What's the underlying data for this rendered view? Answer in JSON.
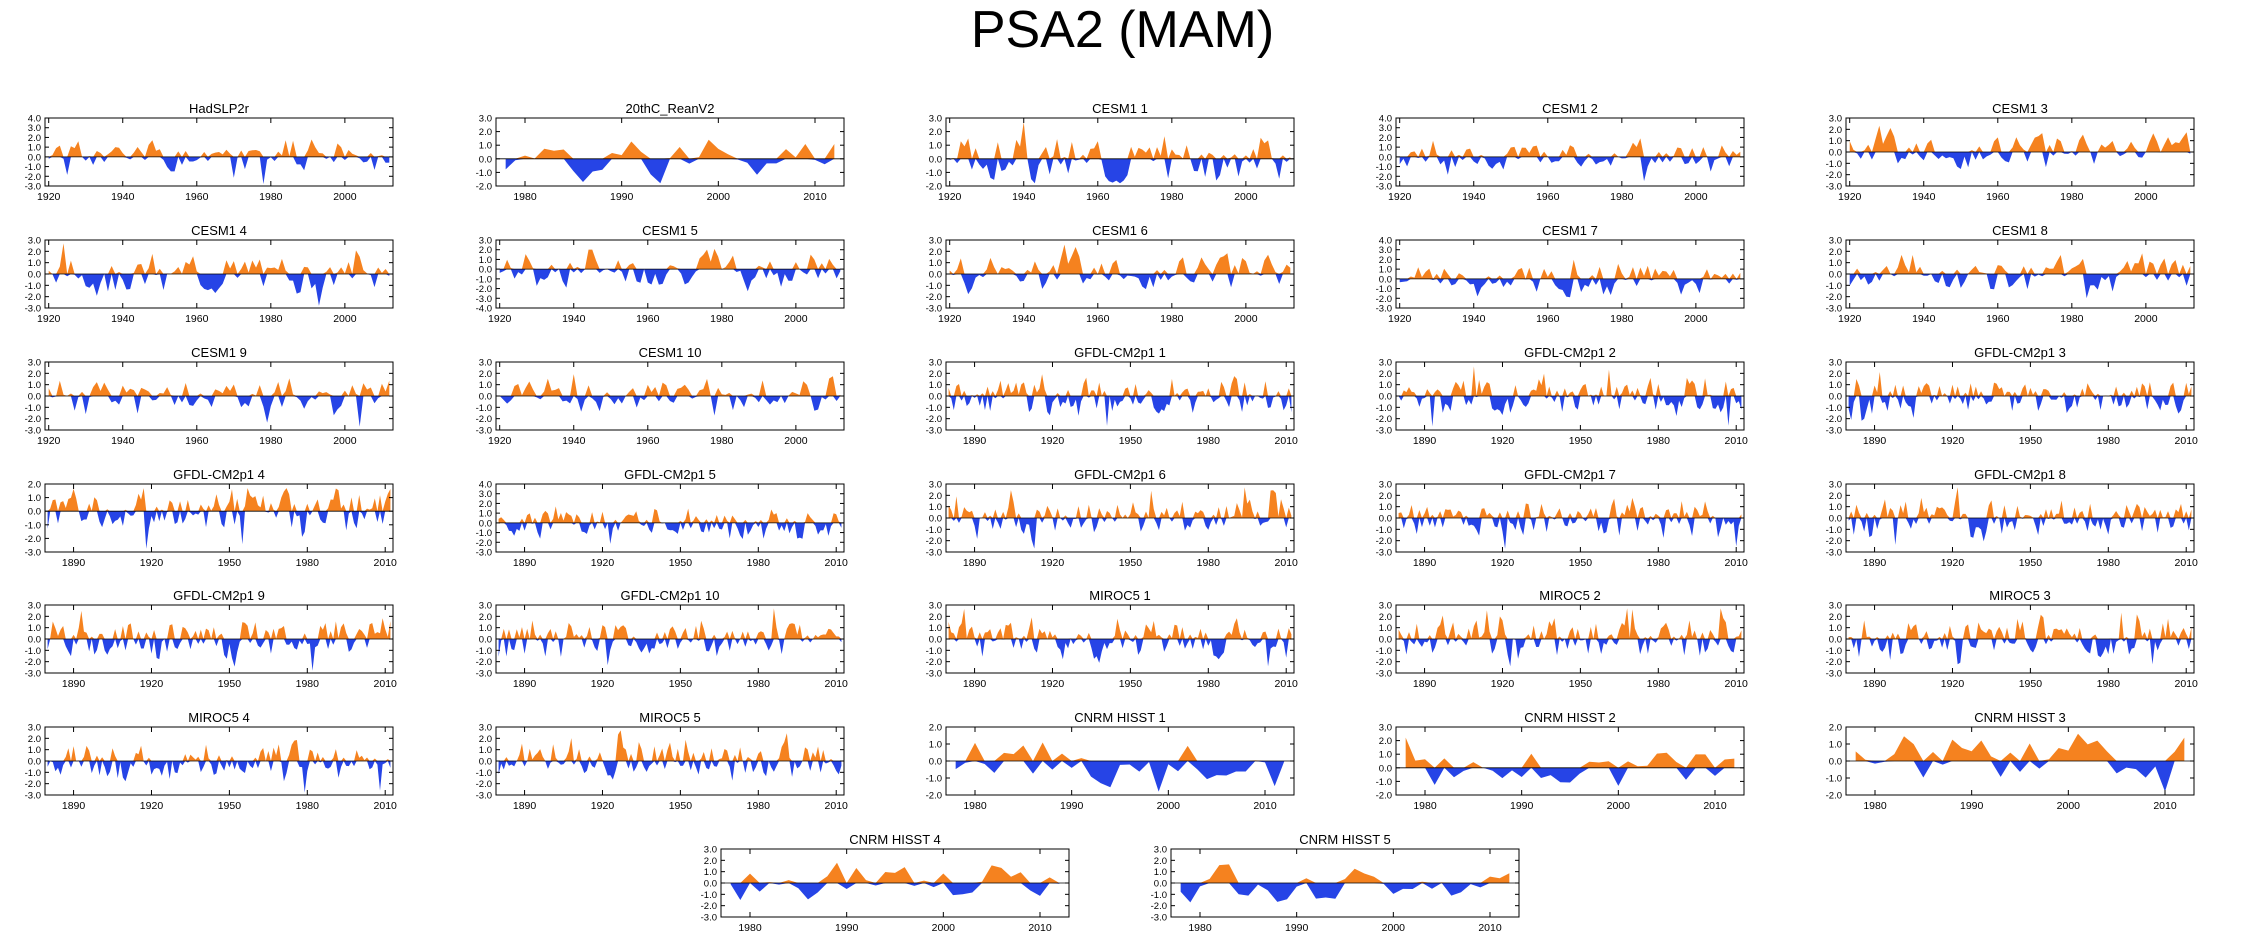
{
  "title": "PSA2 (MAM)",
  "colors": {
    "positive": "#f5821f",
    "negative": "#2644e6",
    "axis": "#000000",
    "background": "#ffffff"
  },
  "chart_data": [
    {
      "type": "area",
      "title": "HadSLP2r",
      "x_start": 1920,
      "x_end": 2012,
      "xticks": [
        1920,
        1940,
        1960,
        1980,
        2000
      ],
      "yticks": [
        "4.0",
        "3.0",
        "2.0",
        "1.0",
        "0.0",
        "-1.0",
        "-2.0",
        "-3.0"
      ],
      "ylim": [
        -3,
        4
      ],
      "seed": 1,
      "smooth": 0.9
    },
    {
      "type": "area",
      "title": "20thC_ReanV2",
      "x_start": 1978,
      "x_end": 2012,
      "xticks": [
        1980,
        1990,
        2000,
        2010
      ],
      "yticks": [
        "3.0",
        "2.0",
        "1.0",
        "0.0",
        "-1.0",
        "-2.0"
      ],
      "ylim": [
        -2,
        3
      ],
      "seed": 2,
      "smooth": 0.8
    },
    {
      "type": "area",
      "title": "CESM1 1",
      "x_start": 1920,
      "x_end": 2012,
      "xticks": [
        1920,
        1940,
        1960,
        1980,
        2000
      ],
      "yticks": [
        "3.0",
        "2.0",
        "1.0",
        "0.0",
        "-1.0",
        "-2.0"
      ],
      "ylim": [
        -2,
        3
      ],
      "seed": 3,
      "smooth": 0.9
    },
    {
      "type": "area",
      "title": "CESM1 2",
      "x_start": 1920,
      "x_end": 2012,
      "xticks": [
        1920,
        1940,
        1960,
        1980,
        2000
      ],
      "yticks": [
        "4.0",
        "3.0",
        "2.0",
        "1.0",
        "0.0",
        "-1.0",
        "-2.0",
        "-3.0"
      ],
      "ylim": [
        -3,
        4
      ],
      "seed": 4,
      "smooth": 0.9
    },
    {
      "type": "area",
      "title": "CESM1 3",
      "x_start": 1920,
      "x_end": 2012,
      "xticks": [
        1920,
        1940,
        1960,
        1980,
        2000
      ],
      "yticks": [
        "3.0",
        "2.0",
        "1.0",
        "0.0",
        "-1.0",
        "-2.0",
        "-3.0"
      ],
      "ylim": [
        -3,
        3
      ],
      "seed": 5,
      "smooth": 0.9
    },
    {
      "type": "area",
      "title": "CESM1 4",
      "x_start": 1920,
      "x_end": 2012,
      "xticks": [
        1920,
        1940,
        1960,
        1980,
        2000
      ],
      "yticks": [
        "3.0",
        "2.0",
        "1.0",
        "0.0",
        "-1.0",
        "-2.0",
        "-3.0"
      ],
      "ylim": [
        -3,
        3
      ],
      "seed": 6,
      "smooth": 0.9
    },
    {
      "type": "area",
      "title": "CESM1 5",
      "x_start": 1920,
      "x_end": 2012,
      "xticks": [
        1920,
        1940,
        1960,
        1980,
        2000
      ],
      "yticks": [
        "3.0",
        "2.0",
        "1.0",
        "0.0",
        "-1.0",
        "-2.0",
        "-3.0",
        "-4.0"
      ],
      "ylim": [
        -4,
        3
      ],
      "seed": 7,
      "smooth": 0.9
    },
    {
      "type": "area",
      "title": "CESM1 6",
      "x_start": 1920,
      "x_end": 2012,
      "xticks": [
        1920,
        1940,
        1960,
        1980,
        2000
      ],
      "yticks": [
        "3.0",
        "2.0",
        "1.0",
        "0.0",
        "-1.0",
        "-2.0",
        "-3.0"
      ],
      "ylim": [
        -3,
        3
      ],
      "seed": 8,
      "smooth": 0.9
    },
    {
      "type": "area",
      "title": "CESM1 7",
      "x_start": 1920,
      "x_end": 2012,
      "xticks": [
        1920,
        1940,
        1960,
        1980,
        2000
      ],
      "yticks": [
        "4.0",
        "3.0",
        "2.0",
        "1.0",
        "0.0",
        "-1.0",
        "-2.0",
        "-3.0"
      ],
      "ylim": [
        -3,
        4
      ],
      "seed": 9,
      "smooth": 0.9
    },
    {
      "type": "area",
      "title": "CESM1 8",
      "x_start": 1920,
      "x_end": 2012,
      "xticks": [
        1920,
        1940,
        1960,
        1980,
        2000
      ],
      "yticks": [
        "3.0",
        "2.0",
        "1.0",
        "0.0",
        "-1.0",
        "-2.0",
        "-3.0"
      ],
      "ylim": [
        -3,
        3
      ],
      "seed": 10,
      "smooth": 0.9
    },
    {
      "type": "area",
      "title": "CESM1 9",
      "x_start": 1920,
      "x_end": 2012,
      "xticks": [
        1920,
        1940,
        1960,
        1980,
        2000
      ],
      "yticks": [
        "3.0",
        "2.0",
        "1.0",
        "0.0",
        "-1.0",
        "-2.0",
        "-3.0"
      ],
      "ylim": [
        -3,
        3
      ],
      "seed": 11,
      "smooth": 0.9
    },
    {
      "type": "area",
      "title": "CESM1 10",
      "x_start": 1920,
      "x_end": 2012,
      "xticks": [
        1920,
        1940,
        1960,
        1980,
        2000
      ],
      "yticks": [
        "3.0",
        "2.0",
        "1.0",
        "0.0",
        "-1.0",
        "-2.0",
        "-3.0"
      ],
      "ylim": [
        -3,
        3
      ],
      "seed": 12,
      "smooth": 0.9
    },
    {
      "type": "area",
      "title": "GFDL-CM2p1 1",
      "x_start": 1880,
      "x_end": 2012,
      "xticks": [
        1890,
        1920,
        1950,
        1980,
        2010
      ],
      "yticks": [
        "3.0",
        "2.0",
        "1.0",
        "0.0",
        "-1.0",
        "-2.0",
        "-3.0"
      ],
      "ylim": [
        -3,
        3
      ],
      "seed": 13,
      "smooth": 1
    },
    {
      "type": "area",
      "title": "GFDL-CM2p1 2",
      "x_start": 1880,
      "x_end": 2012,
      "xticks": [
        1890,
        1920,
        1950,
        1980,
        2010
      ],
      "yticks": [
        "3.0",
        "2.0",
        "1.0",
        "0.0",
        "-1.0",
        "-2.0",
        "-3.0"
      ],
      "ylim": [
        -3,
        3
      ],
      "seed": 14,
      "smooth": 1
    },
    {
      "type": "area",
      "title": "GFDL-CM2p1 3",
      "x_start": 1880,
      "x_end": 2012,
      "xticks": [
        1890,
        1920,
        1950,
        1980,
        2010
      ],
      "yticks": [
        "3.0",
        "2.0",
        "1.0",
        "0.0",
        "-1.0",
        "-2.0",
        "-3.0"
      ],
      "ylim": [
        -3,
        3
      ],
      "seed": 15,
      "smooth": 1
    },
    {
      "type": "area",
      "title": "GFDL-CM2p1 4",
      "x_start": 1880,
      "x_end": 2012,
      "xticks": [
        1890,
        1920,
        1950,
        1980,
        2010
      ],
      "yticks": [
        "2.0",
        "1.0",
        "0.0",
        "-1.0",
        "-2.0",
        "-3.0"
      ],
      "ylim": [
        -3,
        2
      ],
      "seed": 16,
      "smooth": 1
    },
    {
      "type": "area",
      "title": "GFDL-CM2p1 5",
      "x_start": 1880,
      "x_end": 2012,
      "xticks": [
        1890,
        1920,
        1950,
        1980,
        2010
      ],
      "yticks": [
        "4.0",
        "3.0",
        "2.0",
        "1.0",
        "0.0",
        "-1.0",
        "-2.0",
        "-3.0"
      ],
      "ylim": [
        -3,
        4
      ],
      "seed": 17,
      "smooth": 1
    },
    {
      "type": "area",
      "title": "GFDL-CM2p1 6",
      "x_start": 1880,
      "x_end": 2012,
      "xticks": [
        1890,
        1920,
        1950,
        1980,
        2010
      ],
      "yticks": [
        "3.0",
        "2.0",
        "1.0",
        "0.0",
        "-1.0",
        "-2.0",
        "-3.0"
      ],
      "ylim": [
        -3,
        3
      ],
      "seed": 18,
      "smooth": 1
    },
    {
      "type": "area",
      "title": "GFDL-CM2p1 7",
      "x_start": 1880,
      "x_end": 2012,
      "xticks": [
        1890,
        1920,
        1950,
        1980,
        2010
      ],
      "yticks": [
        "3.0",
        "2.0",
        "1.0",
        "0.0",
        "-1.0",
        "-2.0",
        "-3.0"
      ],
      "ylim": [
        -3,
        3
      ],
      "seed": 19,
      "smooth": 1
    },
    {
      "type": "area",
      "title": "GFDL-CM2p1 8",
      "x_start": 1880,
      "x_end": 2012,
      "xticks": [
        1890,
        1920,
        1950,
        1980,
        2010
      ],
      "yticks": [
        "3.0",
        "2.0",
        "1.0",
        "0.0",
        "-1.0",
        "-2.0",
        "-3.0"
      ],
      "ylim": [
        -3,
        3
      ],
      "seed": 20,
      "smooth": 1
    },
    {
      "type": "area",
      "title": "GFDL-CM2p1 9",
      "x_start": 1880,
      "x_end": 2012,
      "xticks": [
        1890,
        1920,
        1950,
        1980,
        2010
      ],
      "yticks": [
        "3.0",
        "2.0",
        "1.0",
        "0.0",
        "-1.0",
        "-2.0",
        "-3.0"
      ],
      "ylim": [
        -3,
        3
      ],
      "seed": 21,
      "smooth": 1
    },
    {
      "type": "area",
      "title": "GFDL-CM2p1 10",
      "x_start": 1880,
      "x_end": 2012,
      "xticks": [
        1890,
        1920,
        1950,
        1980,
        2010
      ],
      "yticks": [
        "3.0",
        "2.0",
        "1.0",
        "0.0",
        "-1.0",
        "-2.0",
        "-3.0"
      ],
      "ylim": [
        -3,
        3
      ],
      "seed": 22,
      "smooth": 1
    },
    {
      "type": "area",
      "title": "MIROC5 1",
      "x_start": 1880,
      "x_end": 2012,
      "xticks": [
        1890,
        1920,
        1950,
        1980,
        2010
      ],
      "yticks": [
        "3.0",
        "2.0",
        "1.0",
        "0.0",
        "-1.0",
        "-2.0",
        "-3.0"
      ],
      "ylim": [
        -3,
        3
      ],
      "seed": 23,
      "smooth": 1
    },
    {
      "type": "area",
      "title": "MIROC5 2",
      "x_start": 1880,
      "x_end": 2012,
      "xticks": [
        1890,
        1920,
        1950,
        1980,
        2010
      ],
      "yticks": [
        "3.0",
        "2.0",
        "1.0",
        "0.0",
        "-1.0",
        "-2.0",
        "-3.0"
      ],
      "ylim": [
        -3,
        3
      ],
      "seed": 24,
      "smooth": 1
    },
    {
      "type": "area",
      "title": "MIROC5 3",
      "x_start": 1880,
      "x_end": 2012,
      "xticks": [
        1890,
        1920,
        1950,
        1980,
        2010
      ],
      "yticks": [
        "3.0",
        "2.0",
        "1.0",
        "0.0",
        "-1.0",
        "-2.0",
        "-3.0"
      ],
      "ylim": [
        -3,
        3
      ],
      "seed": 25,
      "smooth": 1
    },
    {
      "type": "area",
      "title": "MIROC5 4",
      "x_start": 1880,
      "x_end": 2012,
      "xticks": [
        1890,
        1920,
        1950,
        1980,
        2010
      ],
      "yticks": [
        "3.0",
        "2.0",
        "1.0",
        "0.0",
        "-1.0",
        "-2.0",
        "-3.0"
      ],
      "ylim": [
        -3,
        3
      ],
      "seed": 26,
      "smooth": 1
    },
    {
      "type": "area",
      "title": "MIROC5 5",
      "x_start": 1880,
      "x_end": 2012,
      "xticks": [
        1890,
        1920,
        1950,
        1980,
        2010
      ],
      "yticks": [
        "3.0",
        "2.0",
        "1.0",
        "0.0",
        "-1.0",
        "-2.0",
        "-3.0"
      ],
      "ylim": [
        -3,
        3
      ],
      "seed": 27,
      "smooth": 1
    },
    {
      "type": "area",
      "title": "CNRM HISST 1",
      "x_start": 1978,
      "x_end": 2012,
      "xticks": [
        1980,
        1990,
        2000,
        2010
      ],
      "yticks": [
        "2.0",
        "1.0",
        "0.0",
        "-1.0",
        "-2.0"
      ],
      "ylim": [
        -2,
        2
      ],
      "seed": 28,
      "smooth": 0.8
    },
    {
      "type": "area",
      "title": "CNRM HISST 2",
      "x_start": 1978,
      "x_end": 2012,
      "xticks": [
        1980,
        1990,
        2000,
        2010
      ],
      "yticks": [
        "3.0",
        "2.0",
        "1.0",
        "0.0",
        "-1.0",
        "-2.0"
      ],
      "ylim": [
        -2,
        3
      ],
      "seed": 29,
      "smooth": 0.8
    },
    {
      "type": "area",
      "title": "CNRM HISST 3",
      "x_start": 1978,
      "x_end": 2012,
      "xticks": [
        1980,
        1990,
        2000,
        2010
      ],
      "yticks": [
        "2.0",
        "1.0",
        "0.0",
        "-1.0",
        "-2.0"
      ],
      "ylim": [
        -2,
        2
      ],
      "seed": 30,
      "smooth": 0.8
    },
    {
      "type": "area",
      "title": "CNRM HISST 4",
      "x_start": 1978,
      "x_end": 2012,
      "xticks": [
        1980,
        1990,
        2000,
        2010
      ],
      "yticks": [
        "3.0",
        "2.0",
        "1.0",
        "0.0",
        "-1.0",
        "-2.0",
        "-3.0"
      ],
      "ylim": [
        -3,
        3
      ],
      "seed": 31,
      "smooth": 0.8
    },
    {
      "type": "area",
      "title": "CNRM HISST 5",
      "x_start": 1978,
      "x_end": 2012,
      "xticks": [
        1980,
        1990,
        2000,
        2010
      ],
      "yticks": [
        "3.0",
        "2.0",
        "1.0",
        "0.0",
        "-1.0",
        "-2.0",
        "-3.0"
      ],
      "ylim": [
        -3,
        3
      ],
      "seed": 32,
      "smooth": 0.8
    }
  ]
}
